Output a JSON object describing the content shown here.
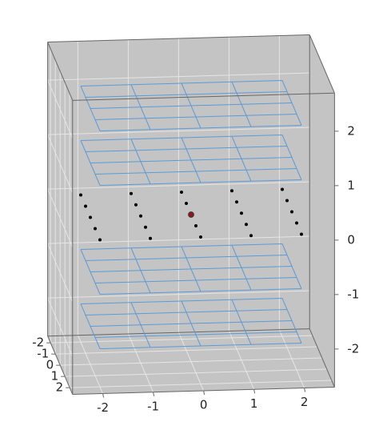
{
  "chart_data": {
    "type": "scatter3d",
    "xlim": [
      -2.6,
      2.6
    ],
    "ylim": [
      -2.6,
      2.6
    ],
    "zlim": [
      -2.7,
      2.7
    ],
    "xticks": [
      -2,
      -1,
      0,
      1,
      2
    ],
    "yticks": [
      -2,
      -1,
      0,
      1,
      2
    ],
    "zticks": [
      -2,
      -1,
      0,
      1,
      2
    ],
    "grid": true,
    "wireframes": {
      "color": "#5b9bd5",
      "x": [
        -2,
        -1,
        0,
        1,
        2
      ],
      "y": [
        -2,
        -1,
        0,
        1,
        2
      ],
      "z": [
        -2,
        -1,
        1,
        2
      ]
    },
    "series": [
      {
        "color": "#000000",
        "x": [
          -2,
          -2,
          -2,
          -2,
          -2,
          -1,
          -1,
          -1,
          -1,
          -1,
          0,
          0,
          0,
          0,
          0,
          1,
          1,
          1,
          1,
          1,
          2,
          2,
          2,
          2,
          2
        ],
        "y": [
          -2,
          -1,
          0,
          1,
          2,
          -2,
          -1,
          0,
          1,
          2,
          -2,
          -1,
          0,
          1,
          2,
          -2,
          -1,
          0,
          1,
          2,
          -2,
          -1,
          0,
          1,
          2
        ],
        "z": [
          0,
          0,
          0,
          0,
          0,
          0,
          0,
          0,
          0,
          0,
          0,
          0,
          0,
          0,
          0,
          0,
          0,
          0,
          0,
          0,
          0,
          0,
          0,
          0,
          0
        ]
      },
      {
        "color": "#8b1a1a",
        "x": [
          0
        ],
        "y": [
          0
        ],
        "z": [
          0
        ]
      }
    ]
  }
}
